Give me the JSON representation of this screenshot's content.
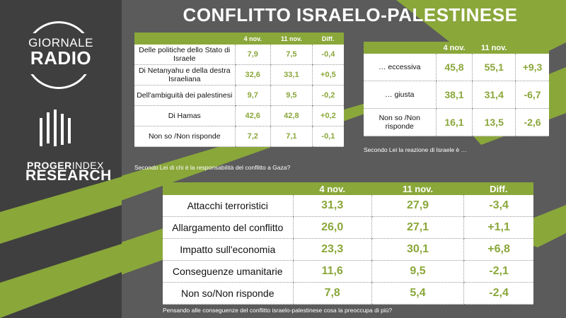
{
  "title": "CONFLITTO ISRAELO-PALESTINESE",
  "logo": {
    "line1": "GIORNALE",
    "line2": "RADIO"
  },
  "brand": {
    "progr": "PROGER",
    "index": "INDEX",
    "research": "RESEARCH"
  },
  "table1": {
    "headers": [
      "",
      "4 nov.",
      "11 nov.",
      "Diff."
    ],
    "rows": [
      {
        "label": "Delle politiche dello Stato di Israele",
        "a": "7,9",
        "b": "7,5",
        "d": "-0,4"
      },
      {
        "label": "Di Netanyahu e della destra Israeliana",
        "a": "32,6",
        "b": "33,1",
        "d": "+0,5"
      },
      {
        "label": "Dell'ambiguità dei palestinesi",
        "a": "9,7",
        "b": "9,5",
        "d": "-0,2"
      },
      {
        "label": "Di Hamas",
        "a": "42,6",
        "b": "42,8",
        "d": "+0,2"
      },
      {
        "label": "Non so /Non risponde",
        "a": "7,2",
        "b": "7,1",
        "d": "-0,1"
      }
    ],
    "note": "Secondo Lei di chi è la responsabilità del conflitto a Gaza?"
  },
  "table2": {
    "headers": [
      "",
      "4 nov.",
      "11 nov.",
      ""
    ],
    "rows": [
      {
        "label": "… eccessiva",
        "a": "45,8",
        "b": "55,1",
        "d": "+9,3"
      },
      {
        "label": "… giusta",
        "a": "38,1",
        "b": "31,4",
        "d": "-6,7"
      },
      {
        "label": "Non so /Non risponde",
        "a": "16,1",
        "b": "13,5",
        "d": "-2,6"
      }
    ],
    "note": "Secondo Lei la reazione di Israele è …"
  },
  "table3": {
    "headers": [
      "",
      "4 nov.",
      "11 nov.",
      "Diff."
    ],
    "rows": [
      {
        "label": "Attacchi terroristici",
        "a": "31,3",
        "b": "27,9",
        "d": "-3,4"
      },
      {
        "label": "Allargamento del conflitto",
        "a": "26,0",
        "b": "27,1",
        "d": "+1,1"
      },
      {
        "label": "Impatto sull'economia",
        "a": "23,3",
        "b": "30,1",
        "d": "+6,8"
      },
      {
        "label": "Conseguenze umanitarie",
        "a": "11,6",
        "b": "9,5",
        "d": "-2,1"
      },
      {
        "label": "Non so/Non risponde",
        "a": "7,8",
        "b": "5,4",
        "d": "-2,4"
      }
    ],
    "note": "Pensando alle conseguenze del conflitto israelo-palestinese cosa la preoccupa di più?"
  },
  "colors": {
    "accent": "#8aa73a",
    "panel": "#3f3f3f",
    "background": "#5b5b5b"
  }
}
